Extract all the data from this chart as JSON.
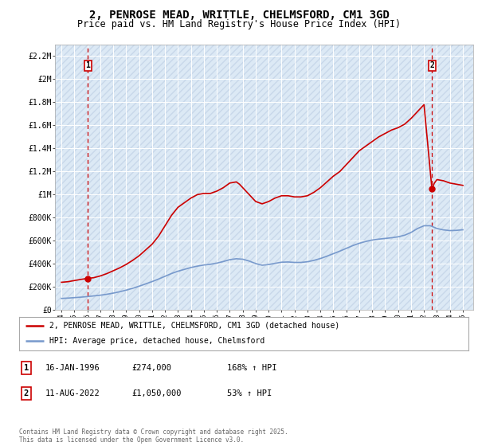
{
  "title": "2, PENROSE MEAD, WRITTLE, CHELMSFORD, CM1 3GD",
  "subtitle": "Price paid vs. HM Land Registry's House Price Index (HPI)",
  "title_fontsize": 10,
  "subtitle_fontsize": 8.5,
  "background_color": "#ffffff",
  "plot_bg_color": "#dce9f5",
  "grid_color": "#ffffff",
  "hatch_bg_color": "#c8d8ea",
  "red_line_color": "#cc0000",
  "blue_line_color": "#7799cc",
  "ylim": [
    0,
    2300000
  ],
  "yticks": [
    0,
    200000,
    400000,
    600000,
    800000,
    1000000,
    1200000,
    1400000,
    1600000,
    1800000,
    2000000,
    2200000
  ],
  "ytick_labels": [
    "£0",
    "£200K",
    "£400K",
    "£600K",
    "£800K",
    "£1M",
    "£1.2M",
    "£1.4M",
    "£1.6M",
    "£1.8M",
    "£2M",
    "£2.2M"
  ],
  "xlim_start": 1993.5,
  "xlim_end": 2025.8,
  "point1_x": 1996.04,
  "point1_y": 274000,
  "point1_label": "1",
  "point1_date": "16-JAN-1996",
  "point1_price": "£274,000",
  "point1_hpi": "168% ↑ HPI",
  "point2_x": 2022.61,
  "point2_y": 1050000,
  "point2_label": "2",
  "point2_date": "11-AUG-2022",
  "point2_price": "£1,050,000",
  "point2_hpi": "53% ↑ HPI",
  "legend_line1": "2, PENROSE MEAD, WRITTLE, CHELMSFORD, CM1 3GD (detached house)",
  "legend_line2": "HPI: Average price, detached house, Chelmsford",
  "footer": "Contains HM Land Registry data © Crown copyright and database right 2025.\nThis data is licensed under the Open Government Licence v3.0.",
  "red_line_data_x": [
    1994.0,
    1994.5,
    1995.0,
    1995.5,
    1996.04,
    1996.5,
    1997.0,
    1997.5,
    1998.0,
    1998.5,
    1999.0,
    1999.5,
    2000.0,
    2000.5,
    2001.0,
    2001.5,
    2002.0,
    2002.5,
    2003.0,
    2003.5,
    2004.0,
    2004.5,
    2005.0,
    2005.5,
    2006.0,
    2006.5,
    2007.0,
    2007.5,
    2007.75,
    2008.0,
    2008.5,
    2009.0,
    2009.5,
    2010.0,
    2010.5,
    2011.0,
    2011.5,
    2012.0,
    2012.5,
    2013.0,
    2013.5,
    2014.0,
    2014.5,
    2015.0,
    2015.5,
    2016.0,
    2016.5,
    2017.0,
    2017.5,
    2018.0,
    2018.5,
    2019.0,
    2019.5,
    2020.0,
    2020.5,
    2021.0,
    2021.5,
    2022.0,
    2022.61,
    2022.8,
    2023.0,
    2023.5,
    2024.0,
    2024.5,
    2025.0
  ],
  "red_line_data_y": [
    240000,
    245000,
    255000,
    265000,
    274000,
    280000,
    295000,
    315000,
    340000,
    365000,
    395000,
    430000,
    470000,
    520000,
    570000,
    640000,
    730000,
    820000,
    890000,
    930000,
    970000,
    1000000,
    1010000,
    1010000,
    1030000,
    1060000,
    1100000,
    1110000,
    1090000,
    1060000,
    1000000,
    940000,
    920000,
    940000,
    970000,
    990000,
    990000,
    980000,
    980000,
    990000,
    1020000,
    1060000,
    1110000,
    1160000,
    1200000,
    1260000,
    1320000,
    1380000,
    1420000,
    1460000,
    1500000,
    1530000,
    1560000,
    1580000,
    1610000,
    1660000,
    1720000,
    1780000,
    1050000,
    1100000,
    1130000,
    1120000,
    1100000,
    1090000,
    1080000
  ],
  "blue_line_data_x": [
    1994.0,
    1994.5,
    1995.0,
    1995.5,
    1996.0,
    1996.5,
    1997.0,
    1997.5,
    1998.0,
    1998.5,
    1999.0,
    1999.5,
    2000.0,
    2000.5,
    2001.0,
    2001.5,
    2002.0,
    2002.5,
    2003.0,
    2003.5,
    2004.0,
    2004.5,
    2005.0,
    2005.5,
    2006.0,
    2006.5,
    2007.0,
    2007.5,
    2008.0,
    2008.5,
    2009.0,
    2009.5,
    2010.0,
    2010.5,
    2011.0,
    2011.5,
    2012.0,
    2012.5,
    2013.0,
    2013.5,
    2014.0,
    2014.5,
    2015.0,
    2015.5,
    2016.0,
    2016.5,
    2017.0,
    2017.5,
    2018.0,
    2018.5,
    2019.0,
    2019.5,
    2020.0,
    2020.5,
    2021.0,
    2021.5,
    2022.0,
    2022.5,
    2023.0,
    2023.5,
    2024.0,
    2024.5,
    2025.0
  ],
  "blue_line_data_y": [
    100000,
    103000,
    107000,
    111000,
    116000,
    122000,
    128000,
    136000,
    146000,
    158000,
    172000,
    188000,
    206000,
    226000,
    246000,
    268000,
    292000,
    316000,
    336000,
    352000,
    368000,
    380000,
    390000,
    396000,
    406000,
    420000,
    436000,
    444000,
    440000,
    424000,
    402000,
    388000,
    394000,
    404000,
    414000,
    416000,
    412000,
    412000,
    418000,
    430000,
    446000,
    466000,
    488000,
    510000,
    534000,
    558000,
    578000,
    594000,
    606000,
    614000,
    620000,
    626000,
    634000,
    648000,
    672000,
    706000,
    730000,
    730000,
    706000,
    694000,
    688000,
    690000,
    695000
  ]
}
